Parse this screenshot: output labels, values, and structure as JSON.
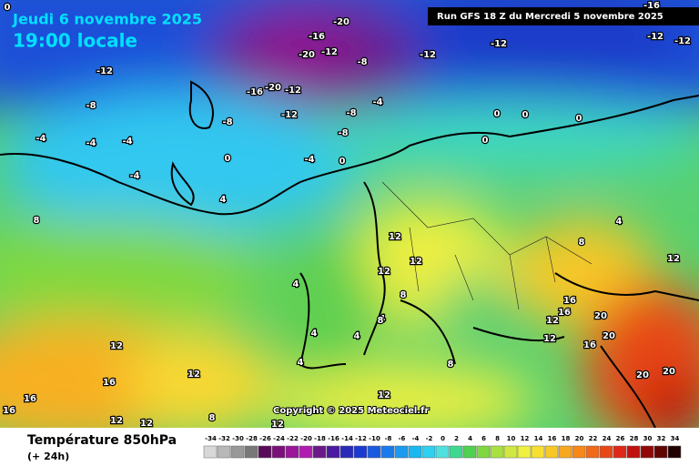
{
  "header": {
    "date": "Jeudi 6 novembre 2025",
    "time": "19:00 locale",
    "run": "Run GFS 18 Z du Mercredi 5 novembre 2025"
  },
  "copyright": "Copyright © 2025 Meteociel.fr",
  "legend": {
    "title": "Température 850hPa",
    "subtitle": "(+ 24h)",
    "scale": [
      -34,
      -32,
      -30,
      -28,
      -26,
      -24,
      -22,
      -20,
      -18,
      -16,
      -14,
      -12,
      -10,
      -8,
      -6,
      -4,
      -2,
      0,
      2,
      4,
      6,
      8,
      10,
      12,
      14,
      16,
      18,
      20,
      22,
      24,
      26,
      28,
      30,
      32,
      34
    ],
    "colors": [
      "#d8d8d8",
      "#b8b8b8",
      "#989898",
      "#787878",
      "#5a0a5a",
      "#7a107a",
      "#9a169a",
      "#b01cb0",
      "#6a1a8a",
      "#4a1aa0",
      "#2a2ab8",
      "#1a3ad0",
      "#1a5ae0",
      "#1a7aea",
      "#1a9af0",
      "#1ab8f0",
      "#30d0f0",
      "#50e0e0",
      "#40d890",
      "#50d050",
      "#80d840",
      "#a8e040",
      "#d0e840",
      "#f0f040",
      "#f8e030",
      "#f8c828",
      "#f8a820",
      "#f88818",
      "#f06818",
      "#e84818",
      "#e02818",
      "#c01010",
      "#900808",
      "#600404",
      "#200000"
    ]
  },
  "map": {
    "labels": [
      "-12",
      "-8",
      "-4",
      "-4",
      "-4",
      "-4",
      "-20",
      "-16",
      "-12",
      "-20",
      "-8",
      "-12",
      "-12",
      "-12",
      "-16",
      "-16",
      "-20",
      "-12",
      "-12",
      "-8",
      "-8",
      "-4",
      "-8",
      "0",
      "0",
      "0",
      "0",
      "0",
      "-4",
      "0",
      "4",
      "4",
      "8",
      "12",
      "12",
      "12",
      "4",
      "12",
      "16",
      "20",
      "16",
      "12",
      "12",
      "20",
      "16",
      "20",
      "20",
      "8",
      "4",
      "8",
      "4",
      "4",
      "8",
      "12",
      "12",
      "16",
      "16",
      "16",
      "12",
      "12",
      "12",
      "8",
      "12",
      "4",
      "8",
      "0",
      "-12"
    ]
  }
}
